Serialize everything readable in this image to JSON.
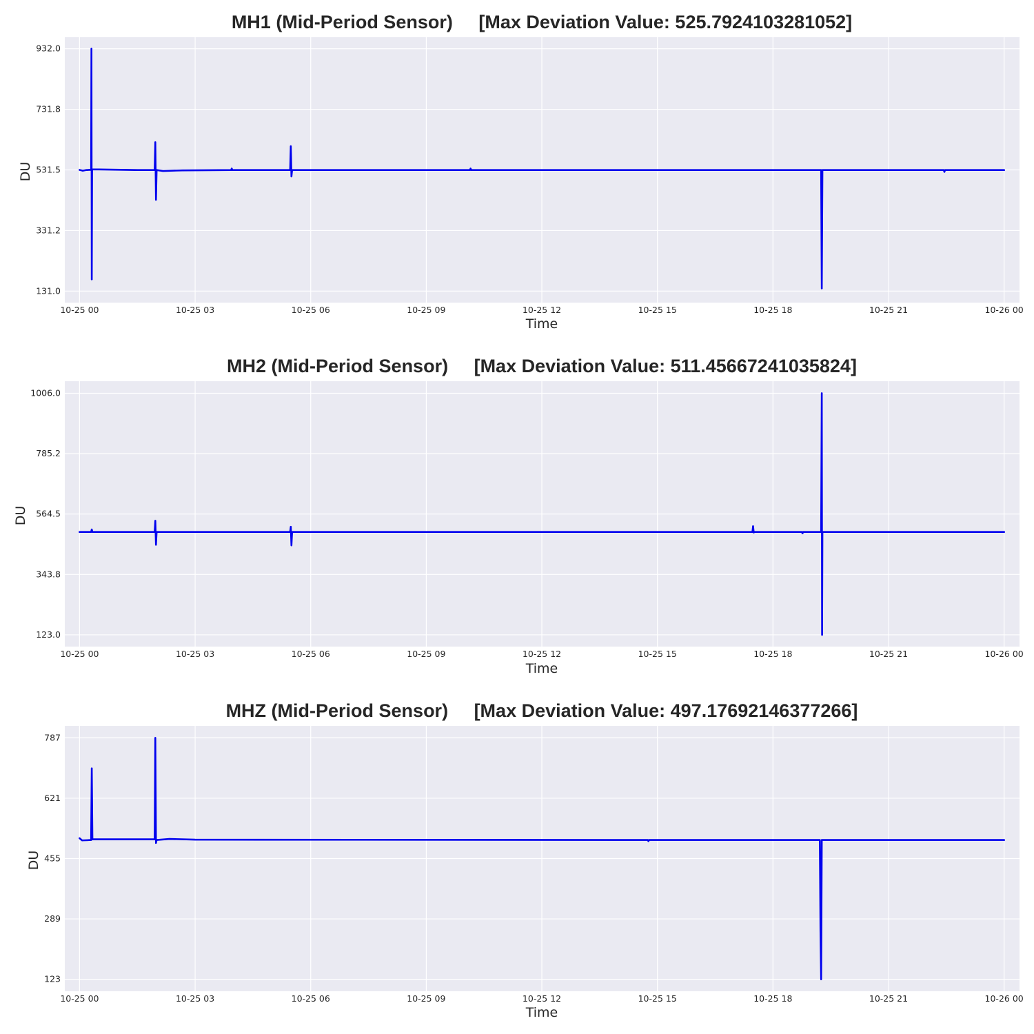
{
  "chart_data": [
    {
      "type": "line",
      "title": "MH1 (Mid-Period Sensor)     [Max Deviation Value: 525.7924103281052]",
      "xlabel": "Time",
      "ylabel": "DU",
      "x_tick_labels": [
        "10-25 00",
        "10-25 03",
        "10-25 06",
        "10-25 09",
        "10-25 12",
        "10-25 15",
        "10-25 18",
        "10-25 21",
        "10-26 00"
      ],
      "y_tick_labels": [
        "932.0",
        "731.8",
        "531.5",
        "331.2",
        "131.0"
      ],
      "yticks": [
        932.0,
        731.8,
        531.5,
        331.2,
        131.0
      ],
      "xlim": [
        "2024-10-24T23:37",
        "2024-10-26T00:24"
      ],
      "ylim": [
        93,
        970
      ],
      "grid": true,
      "series": [
        {
          "color": "#0000ee",
          "points": [
            [
              "2024-10-25T00:00:00",
              531.5
            ],
            [
              "2024-10-25T00:05:00",
              529.0
            ],
            [
              "2024-10-25T00:10:00",
              531.0
            ],
            [
              "2024-10-25T00:18:00",
              532.0
            ],
            [
              "2024-10-25T00:18:30",
              932.0
            ],
            [
              "2024-10-25T00:19:00",
              170.0
            ],
            [
              "2024-10-25T00:19:30",
              533.0
            ],
            [
              "2024-10-25T00:30:00",
              533.0
            ],
            [
              "2024-10-25T01:30:00",
              531.0
            ],
            [
              "2024-10-25T01:57:00",
              531.0
            ],
            [
              "2024-10-25T01:58:00",
              623.0
            ],
            [
              "2024-10-25T01:59:00",
              433.0
            ],
            [
              "2024-10-25T02:00:00",
              531.0
            ],
            [
              "2024-10-25T02:10:00",
              528.0
            ],
            [
              "2024-10-25T02:40:00",
              530.0
            ],
            [
              "2024-10-25T03:56:00",
              531.0
            ],
            [
              "2024-10-25T03:57:00",
              536.0
            ],
            [
              "2024-10-25T03:58:00",
              531.0
            ],
            [
              "2024-10-25T05:28:00",
              531.0
            ],
            [
              "2024-10-25T05:29:00",
              610.0
            ],
            [
              "2024-10-25T05:30:00",
              510.0
            ],
            [
              "2024-10-25T05:31:00",
              531.0
            ],
            [
              "2024-10-25T10:08:00",
              531.0
            ],
            [
              "2024-10-25T10:09:00",
              536.0
            ],
            [
              "2024-10-25T10:10:00",
              531.0
            ],
            [
              "2024-10-25T19:15:00",
              531.0
            ],
            [
              "2024-10-25T19:16:00",
              140.0
            ],
            [
              "2024-10-25T19:17:00",
              531.0
            ],
            [
              "2024-10-25T22:26:00",
              531.0
            ],
            [
              "2024-10-25T22:27:00",
              525.0
            ],
            [
              "2024-10-25T22:28:00",
              531.0
            ],
            [
              "2024-10-26T00:00:00",
              531.0
            ]
          ]
        }
      ]
    },
    {
      "type": "line",
      "title": "MH2 (Mid-Period Sensor)     [Max Deviation Value: 511.45667241035824]",
      "xlabel": "Time",
      "ylabel": "DU",
      "x_tick_labels": [
        "10-25 00",
        "10-25 03",
        "10-25 06",
        "10-25 09",
        "10-25 12",
        "10-25 15",
        "10-25 18",
        "10-25 21",
        "10-26 00"
      ],
      "y_tick_labels": [
        "1006.0",
        "785.2",
        "564.5",
        "343.8",
        "123.0"
      ],
      "yticks": [
        1006.0,
        785.2,
        564.5,
        343.8,
        123.0
      ],
      "xlim": [
        "2024-10-24T23:37",
        "2024-10-26T00:24"
      ],
      "ylim": [
        80,
        1050
      ],
      "grid": true,
      "series": [
        {
          "color": "#0000ee",
          "points": [
            [
              "2024-10-25T00:00:00",
              499.0
            ],
            [
              "2024-10-25T00:18:00",
              499.0
            ],
            [
              "2024-10-25T00:19:00",
              508.0
            ],
            [
              "2024-10-25T00:20:00",
              499.0
            ],
            [
              "2024-10-25T01:57:00",
              499.0
            ],
            [
              "2024-10-25T01:58:00",
              540.0
            ],
            [
              "2024-10-25T01:59:00",
              452.0
            ],
            [
              "2024-10-25T02:00:00",
              499.0
            ],
            [
              "2024-10-25T05:28:00",
              499.0
            ],
            [
              "2024-10-25T05:29:00",
              518.0
            ],
            [
              "2024-10-25T05:30:00",
              450.0
            ],
            [
              "2024-10-25T05:31:00",
              499.0
            ],
            [
              "2024-10-25T17:28:00",
              499.0
            ],
            [
              "2024-10-25T17:29:00",
              520.0
            ],
            [
              "2024-10-25T17:30:00",
              497.0
            ],
            [
              "2024-10-25T17:31:00",
              499.0
            ],
            [
              "2024-10-25T18:45:00",
              499.0
            ],
            [
              "2024-10-25T18:46:00",
              494.0
            ],
            [
              "2024-10-25T18:47:00",
              499.0
            ],
            [
              "2024-10-25T19:15:00",
              499.0
            ],
            [
              "2024-10-25T19:16:00",
              1006.0
            ],
            [
              "2024-10-25T19:16:30",
              123.0
            ],
            [
              "2024-10-25T19:17:00",
              499.0
            ],
            [
              "2024-10-26T00:00:00",
              499.0
            ]
          ]
        }
      ]
    },
    {
      "type": "line",
      "title": "MHZ (Mid-Period Sensor)     [Max Deviation Value: 497.17692146377266]",
      "xlabel": "Time",
      "ylabel": "DU",
      "x_tick_labels": [
        "10-25 00",
        "10-25 03",
        "10-25 06",
        "10-25 09",
        "10-25 12",
        "10-25 15",
        "10-25 18",
        "10-25 21",
        "10-26 00"
      ],
      "y_tick_labels": [
        "787",
        "621",
        "455",
        "289",
        "123"
      ],
      "yticks": [
        787,
        621,
        455,
        289,
        123
      ],
      "xlim": [
        "2024-10-24T23:37",
        "2024-10-26T00:24"
      ],
      "ylim": [
        90,
        820
      ],
      "grid": true,
      "series": [
        {
          "color": "#0000ee",
          "points": [
            [
              "2024-10-25T00:00:00",
              511.0
            ],
            [
              "2024-10-25T00:04:00",
              505.0
            ],
            [
              "2024-10-25T00:18:00",
              506.0
            ],
            [
              "2024-10-25T00:19:00",
              703.0
            ],
            [
              "2024-10-25T00:20:00",
              508.0
            ],
            [
              "2024-10-25T01:57:00",
              508.0
            ],
            [
              "2024-10-25T01:58:00",
              787.0
            ],
            [
              "2024-10-25T01:59:00",
              498.0
            ],
            [
              "2024-10-25T02:00:00",
              506.0
            ],
            [
              "2024-10-25T02:20:00",
              509.0
            ],
            [
              "2024-10-25T03:00:00",
              507.0
            ],
            [
              "2024-10-25T14:45:00",
              506.0
            ],
            [
              "2024-10-25T14:46:00",
              503.0
            ],
            [
              "2024-10-25T14:47:00",
              506.0
            ],
            [
              "2024-10-25T19:13:00",
              506.0
            ],
            [
              "2024-10-25T19:14:00",
              255.0
            ],
            [
              "2024-10-25T19:15:00",
              123.0
            ],
            [
              "2024-10-25T19:16:00",
              506.0
            ],
            [
              "2024-10-26T00:00:00",
              506.0
            ]
          ]
        }
      ]
    }
  ]
}
